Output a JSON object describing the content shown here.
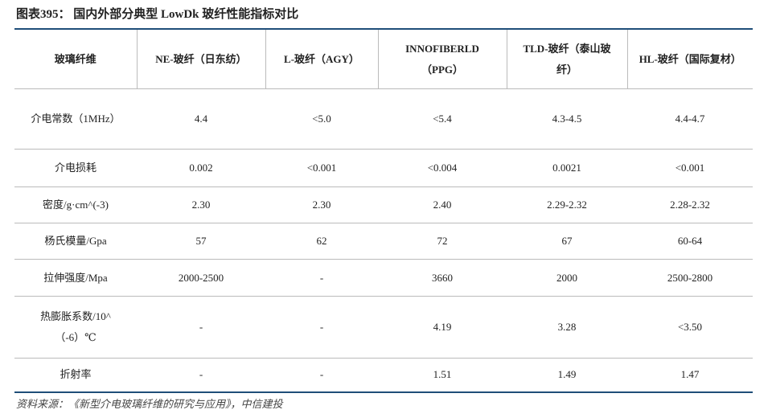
{
  "header": {
    "title": "图表395：  国内外部分典型 LowDk 玻纤性能指标对比"
  },
  "table": {
    "columns": [
      "玻璃纤维",
      "NE-玻纤（日东纺）",
      "L-玻纤（AGY）",
      "INNOFIBERLD（PPG）",
      "TLD-玻纤（泰山玻纤）",
      "HL-玻纤（国际复材）"
    ],
    "rows": [
      [
        "介电常数（1MHz）",
        "4.4",
        "<5.0",
        "<5.4",
        "4.3-4.5",
        "4.4-4.7"
      ],
      [
        "介电损耗",
        "0.002",
        "<0.001",
        "<0.004",
        "0.0021",
        "<0.001"
      ],
      [
        "密度/g·cm^(-3)",
        "2.30",
        "2.30",
        "2.40",
        "2.29-2.32",
        "2.28-2.32"
      ],
      [
        "杨氏模量/Gpa",
        "57",
        "62",
        "72",
        "67",
        "60-64"
      ],
      [
        "拉伸强度/Mpa",
        "2000-2500",
        "-",
        "3660",
        "2000",
        "2500-2800"
      ],
      [
        "热膨胀系数/10^（-6）℃",
        "-",
        "-",
        "4.19",
        "3.28",
        "<3.50"
      ],
      [
        "折射率",
        "-",
        "-",
        "1.51",
        "1.49",
        "1.47"
      ]
    ]
  },
  "footer": {
    "source": "资料来源：《新型介电玻璃纤维的研究与应用》，中信建投"
  }
}
